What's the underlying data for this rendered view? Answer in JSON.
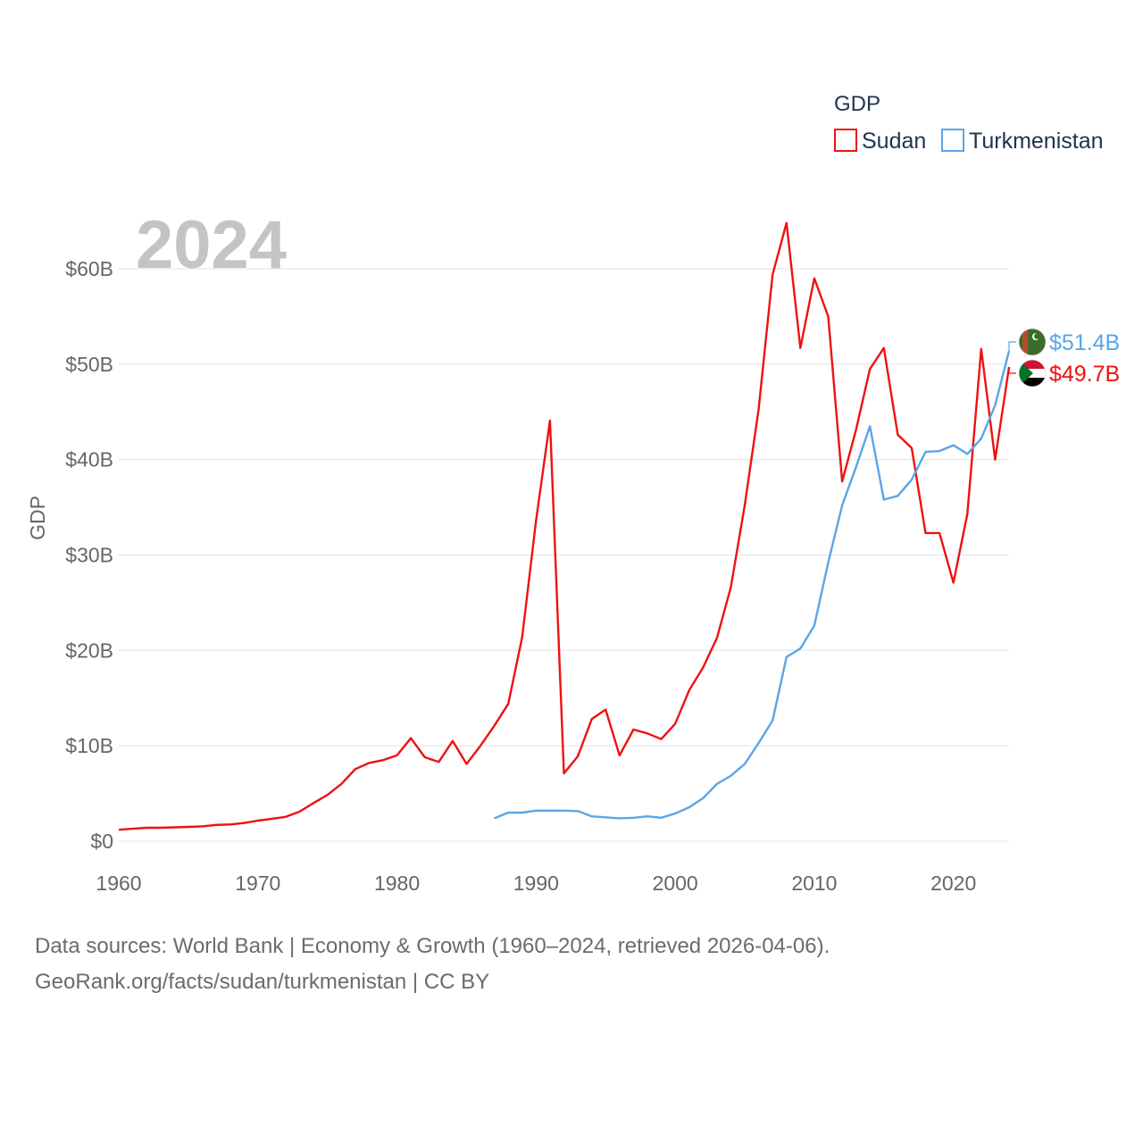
{
  "chart_data": {
    "type": "line",
    "title": "",
    "year_label": "2024",
    "xlabel": "",
    "ylabel": "GDP",
    "xlim": [
      1960,
      2024
    ],
    "ylim": [
      0,
      65
    ],
    "x_ticks": [
      1960,
      1970,
      1980,
      1990,
      2000,
      2010,
      2020
    ],
    "y_ticks": [
      0,
      10,
      20,
      30,
      40,
      50,
      60
    ],
    "y_tick_labels": [
      "$0",
      "$10B",
      "$20B",
      "$30B",
      "$40B",
      "$50B",
      "$60B"
    ],
    "legend": {
      "title": "GDP",
      "position": "top-right"
    },
    "series": [
      {
        "name": "Sudan",
        "color": "#ee1111",
        "end_label": "$49.7B",
        "flag_icon": "sudan-flag-icon",
        "x": [
          1960,
          1961,
          1962,
          1963,
          1964,
          1965,
          1966,
          1967,
          1968,
          1969,
          1970,
          1971,
          1972,
          1973,
          1974,
          1975,
          1976,
          1977,
          1978,
          1979,
          1980,
          1981,
          1982,
          1983,
          1984,
          1985,
          1986,
          1987,
          1988,
          1989,
          1990,
          1991,
          1992,
          1993,
          1994,
          1995,
          1996,
          1997,
          1998,
          1999,
          2000,
          2001,
          2002,
          2003,
          2004,
          2005,
          2006,
          2007,
          2008,
          2009,
          2010,
          2011,
          2012,
          2013,
          2014,
          2015,
          2016,
          2017,
          2018,
          2019,
          2020,
          2021,
          2022,
          2023,
          2024
        ],
        "values": [
          1.2,
          1.3,
          1.4,
          1.4,
          1.45,
          1.5,
          1.55,
          1.7,
          1.75,
          1.9,
          2.15,
          2.35,
          2.55,
          3.1,
          4.0,
          4.85,
          6.0,
          7.55,
          8.2,
          8.5,
          9.0,
          10.8,
          8.8,
          8.3,
          10.5,
          8.1,
          10.0,
          12.1,
          14.4,
          21.4,
          33.6,
          44.1,
          7.1,
          8.9,
          12.8,
          13.8,
          9.0,
          11.7,
          11.3,
          10.7,
          12.3,
          15.8,
          18.2,
          21.3,
          26.6,
          35.2,
          45.3,
          59.4,
          64.8,
          51.7,
          59.0,
          55.0,
          37.7,
          43.1,
          49.5,
          51.7,
          42.6,
          41.2,
          32.3,
          32.3,
          27.1,
          34.3,
          51.6,
          40.0,
          49.7
        ]
      },
      {
        "name": "Turkmenistan",
        "color": "#5aa5e6",
        "end_label": "$51.4B",
        "flag_icon": "turkmenistan-flag-icon",
        "x": [
          1987,
          1988,
          1989,
          1990,
          1991,
          1992,
          1993,
          1994,
          1995,
          1996,
          1997,
          1998,
          1999,
          2000,
          2001,
          2002,
          2003,
          2004,
          2005,
          2006,
          2007,
          2008,
          2009,
          2010,
          2011,
          2012,
          2013,
          2014,
          2015,
          2016,
          2017,
          2018,
          2019,
          2020,
          2021,
          2022,
          2023,
          2024
        ],
        "values": [
          2.4,
          3.0,
          3.0,
          3.2,
          3.2,
          3.2,
          3.15,
          2.6,
          2.5,
          2.4,
          2.45,
          2.6,
          2.45,
          2.9,
          3.55,
          4.5,
          6.0,
          6.85,
          8.1,
          10.3,
          12.65,
          19.3,
          20.2,
          22.6,
          29.2,
          35.2,
          39.2,
          43.5,
          35.8,
          36.2,
          37.9,
          40.8,
          40.9,
          41.5,
          40.6,
          42.2,
          45.7,
          51.4
        ]
      }
    ]
  },
  "footer": {
    "line1": "Data sources: World Bank | Economy & Growth (1960–2024, retrieved 2026-04-06).",
    "line2": "GeoRank.org/facts/sudan/turkmenistan | CC BY"
  }
}
